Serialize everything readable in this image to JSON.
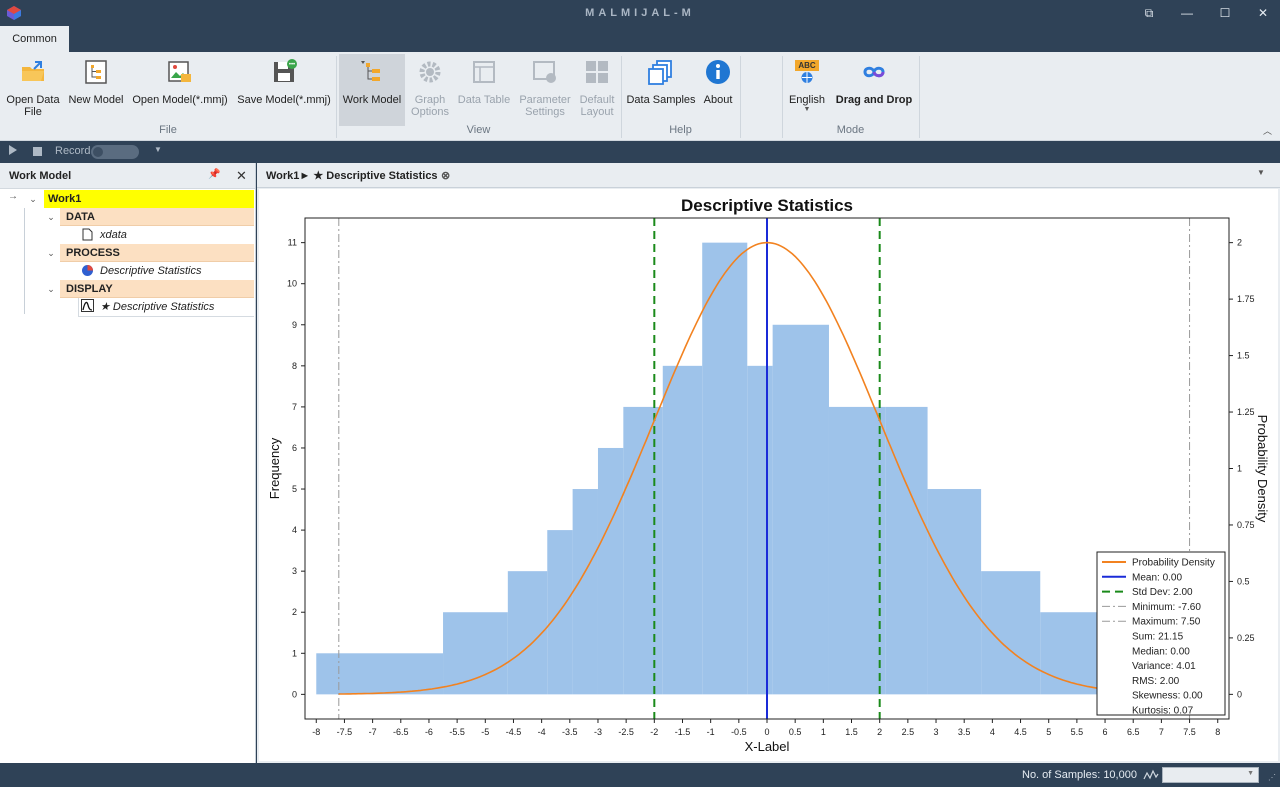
{
  "window": {
    "title": "MALMIJAL-M",
    "controls": [
      "⧉",
      "—",
      "☐",
      "✕"
    ]
  },
  "ribbon": {
    "tab": "Common",
    "groups": {
      "file": "File",
      "view": "View",
      "help": "Help",
      "mode": "Mode"
    },
    "buttons": {
      "open_data_1": "Open Data",
      "open_data_2": "File",
      "new_model": "New Model",
      "open_model": "Open Model(*.mmj)",
      "save_model": "Save Model(*.mmj)",
      "work_model": "Work Model",
      "graph_options_1": "Graph",
      "graph_options_2": "Options",
      "data_table": "Data Table",
      "parameter_settings_1": "Parameter",
      "parameter_settings_2": "Settings",
      "default_layout_1": "Default",
      "default_layout_2": "Layout",
      "data_samples": "Data Samples",
      "about": "About",
      "english": "English",
      "abc_badge": "ABC",
      "drag_and_drop": "Drag and Drop"
    },
    "accent": "#f2a72b"
  },
  "recordbar": {
    "record_label": "Record"
  },
  "work_model": {
    "title": "Work Model",
    "root": "Work1",
    "sections": [
      {
        "name": "DATA",
        "child": "xdata"
      },
      {
        "name": "PROCESS",
        "child": "Descriptive Statistics"
      },
      {
        "name": "DISPLAY",
        "child": "★ Descriptive Statistics"
      }
    ],
    "root_color": "#ffff00",
    "section_color": "#fce0c2"
  },
  "document": {
    "tab_label": "Work1► ★ Descriptive Statistics"
  },
  "statusbar": {
    "samples": "No. of Samples: 10,000"
  },
  "chart_data": {
    "type": "bar",
    "title": "Descriptive Statistics",
    "xlabel": "X-Label",
    "ylabel": "Frequency",
    "y2label": "Probability Density",
    "xlim": [
      -8.2,
      8.2
    ],
    "ylim": [
      -0.6,
      11.6
    ],
    "y2lim": [
      -0.1091,
      2.1091
    ],
    "xticks": [
      "-8",
      "-7.5",
      "-7",
      "-6.5",
      "-6",
      "-5.5",
      "-5",
      "-4.5",
      "-4",
      "-3.5",
      "-3",
      "-2.5",
      "-2",
      "-1.5",
      "-1",
      "-0.5",
      "0",
      "0.5",
      "1",
      "1.5",
      "2",
      "2.5",
      "3",
      "3.5",
      "4",
      "4.5",
      "5",
      "5.5",
      "6",
      "6.5",
      "7",
      "7.5",
      "8"
    ],
    "yticks": [
      "0",
      "1",
      "2",
      "3",
      "4",
      "5",
      "6",
      "7",
      "8",
      "9",
      "10",
      "11"
    ],
    "y2ticks": [
      "0",
      "0.25",
      "0.5",
      "0.75",
      "1",
      "1.25",
      "1.5",
      "1.75",
      "2"
    ],
    "bars": [
      {
        "x0": -8.0,
        "x1": -5.75,
        "y": 1
      },
      {
        "x0": -5.75,
        "x1": -4.6,
        "y": 2
      },
      {
        "x0": -4.6,
        "x1": -3.9,
        "y": 3
      },
      {
        "x0": -3.9,
        "x1": -3.45,
        "y": 4
      },
      {
        "x0": -3.45,
        "x1": -3.0,
        "y": 5
      },
      {
        "x0": -3.0,
        "x1": -2.55,
        "y": 6
      },
      {
        "x0": -2.55,
        "x1": -1.85,
        "y": 7
      },
      {
        "x0": -1.85,
        "x1": -1.15,
        "y": 8
      },
      {
        "x0": -1.15,
        "x1": -0.35,
        "y": 11
      },
      {
        "x0": -0.35,
        "x1": 0.1,
        "y": 8
      },
      {
        "x0": 0.1,
        "x1": 1.1,
        "y": 9
      },
      {
        "x0": 1.1,
        "x1": 2.1,
        "y": 7
      },
      {
        "x0": 2.1,
        "x1": 2.85,
        "y": 7
      },
      {
        "x0": 2.85,
        "x1": 3.8,
        "y": 5
      },
      {
        "x0": 3.8,
        "x1": 4.85,
        "y": 3
      },
      {
        "x0": 4.85,
        "x1": 6.1,
        "y": 2
      }
    ],
    "bar_color": "#9ec3ea",
    "series": [
      {
        "name": "Probability Density",
        "mean": 0.0,
        "std": 2.0,
        "peak": 2.0,
        "color": "#f28220"
      }
    ],
    "vlines": [
      {
        "name": "Mean: 0.00",
        "x": 0.0,
        "color": "#1a2bd8",
        "style": "solid"
      },
      {
        "name": "Std Dev: 2.00",
        "x": -2.0,
        "color": "#1a8a1a",
        "style": "dash"
      },
      {
        "name": "Std Dev: 2.00",
        "x": 2.0,
        "color": "#1a8a1a",
        "style": "dash"
      },
      {
        "name": "Minimum: -7.60",
        "x": -7.6,
        "color": "#9a9a9a",
        "style": "dashdot"
      },
      {
        "name": "Maximum: 7.50",
        "x": 7.5,
        "color": "#9a9a9a",
        "style": "dashdot"
      }
    ],
    "legend_lines": [
      {
        "label": "Probability Density",
        "color": "#f28220",
        "style": "solid"
      },
      {
        "label": "Mean: 0.00",
        "color": "#1a2bd8",
        "style": "solid"
      },
      {
        "label": "Std Dev: 2.00",
        "color": "#1a8a1a",
        "style": "dash"
      },
      {
        "label": "Minimum: -7.60",
        "color": "#9a9a9a",
        "style": "dashdot"
      },
      {
        "label": "Maximum: 7.50",
        "color": "#9a9a9a",
        "style": "dashdot"
      }
    ],
    "legend_stats": [
      "Sum: 21.15",
      "Median: 0.00",
      "Variance: 4.01",
      "RMS: 2.00",
      "Skewness: 0.00",
      "Kurtosis: 0.07"
    ],
    "legend_position": "bottom-right"
  }
}
